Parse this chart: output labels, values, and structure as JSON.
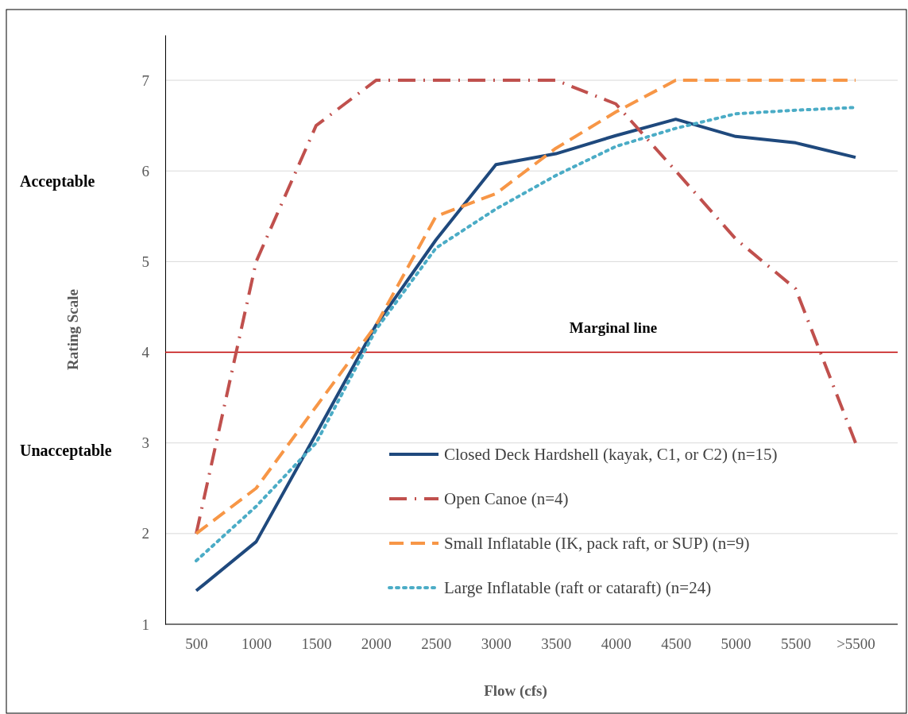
{
  "chart_data": {
    "type": "line",
    "xlabel": "Flow (cfs)",
    "ylabel": "Rating Scale",
    "categories": [
      "500",
      "1000",
      "1500",
      "2000",
      "2500",
      "3000",
      "3500",
      "4000",
      "4500",
      "5000",
      "5500",
      ">5500"
    ],
    "series": [
      {
        "name": "Closed Deck Hardshell (kayak, C1, or C2) (n=15)",
        "color": "#1f497d",
        "line_style": "solid",
        "values": [
          1.37,
          1.91,
          3.1,
          4.3,
          5.24,
          6.07,
          6.19,
          6.39,
          6.57,
          6.38,
          6.31,
          6.15
        ]
      },
      {
        "name": "Open Canoe (n=4)",
        "color": "#c0504d",
        "line_style": "dashdot",
        "values": [
          2.0,
          5.0,
          6.5,
          7.0,
          7.0,
          7.0,
          7.0,
          6.74,
          6.0,
          5.25,
          4.7,
          3.0
        ]
      },
      {
        "name": "Small Inflatable (IK, pack raft, or SUP) (n=9)",
        "color": "#f79646",
        "line_style": "dashed",
        "values": [
          2.0,
          2.5,
          3.4,
          4.3,
          5.5,
          5.75,
          6.25,
          6.65,
          7.0,
          7.0,
          7.0,
          7.0
        ]
      },
      {
        "name": "Large Inflatable (raft or cataraft) (n=24)",
        "color": "#4bacc6",
        "line_style": "dotted",
        "values": [
          1.7,
          2.3,
          3.0,
          4.25,
          5.15,
          5.58,
          5.95,
          6.27,
          6.47,
          6.63,
          6.67,
          6.7
        ]
      }
    ],
    "ylim": [
      1,
      7.5
    ],
    "yticks": [
      1,
      2,
      3,
      4,
      5,
      6,
      7
    ],
    "grid": "y",
    "legend": "bottom right",
    "marker": "none",
    "ref_lines": [
      {
        "axis": "y",
        "value": 4,
        "label": "Marginal line",
        "color": "#c00000"
      }
    ],
    "annotations": [
      "Acceptable",
      "Unacceptable"
    ]
  }
}
